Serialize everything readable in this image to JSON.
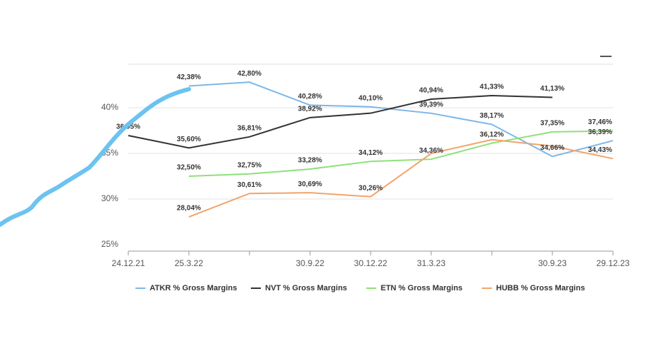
{
  "chart_data": {
    "type": "line",
    "categories": [
      "24.12.21",
      "25.3.22",
      null,
      "30.9.22",
      "30.12.22",
      "31.3.23",
      null,
      "30.9.23",
      "29.12.23"
    ],
    "series": [
      {
        "name": "ATKR % Gross Margins",
        "color": "#7db7e8",
        "values": [
          null,
          42.38,
          42.8,
          40.28,
          40.1,
          39.39,
          38.17,
          34.66,
          36.39
        ],
        "value_labels": [
          null,
          "42,38%",
          "42,80%",
          "40,28%",
          "40,10%",
          "39,39%",
          "38,17%",
          "34,66%",
          "36,39%"
        ]
      },
      {
        "name": "NVT % Gross Margins",
        "color": "#333333",
        "values": [
          36.95,
          35.6,
          36.81,
          38.92,
          39.4,
          40.94,
          41.33,
          41.13,
          null
        ],
        "value_labels": [
          "36,95%",
          "35,60%",
          "36,81%",
          "38,92%",
          null,
          "40,94%",
          "41,33%",
          "41,13%",
          null
        ]
      },
      {
        "name": "ETN % Gross Margins",
        "color": "#8ee07a",
        "values": [
          null,
          32.5,
          32.75,
          33.28,
          34.12,
          34.36,
          36.12,
          37.35,
          37.46
        ],
        "value_labels": [
          null,
          "32,50%",
          "32,75%",
          "33,28%",
          "34,12%",
          "34,36%",
          "36,12%",
          "37,35%",
          "37,46%"
        ]
      },
      {
        "name": "HUBB % Gross Margins",
        "color": "#f2a46a",
        "values": [
          null,
          28.04,
          30.61,
          30.69,
          30.26,
          35.0,
          36.5,
          35.8,
          34.43
        ],
        "value_labels": [
          null,
          "28,04%",
          "30,61%",
          "30,69%",
          "30,26%",
          null,
          null,
          null,
          "34,43%"
        ]
      }
    ],
    "ylim": [
      25,
      45
    ],
    "yticks": [
      {
        "value": 25,
        "label": "25%"
      },
      {
        "value": 30,
        "label": "30%"
      },
      {
        "value": 35,
        "label": "35%"
      },
      {
        "value": 40,
        "label": "40%"
      }
    ],
    "grid": true,
    "legend": "bottom"
  }
}
